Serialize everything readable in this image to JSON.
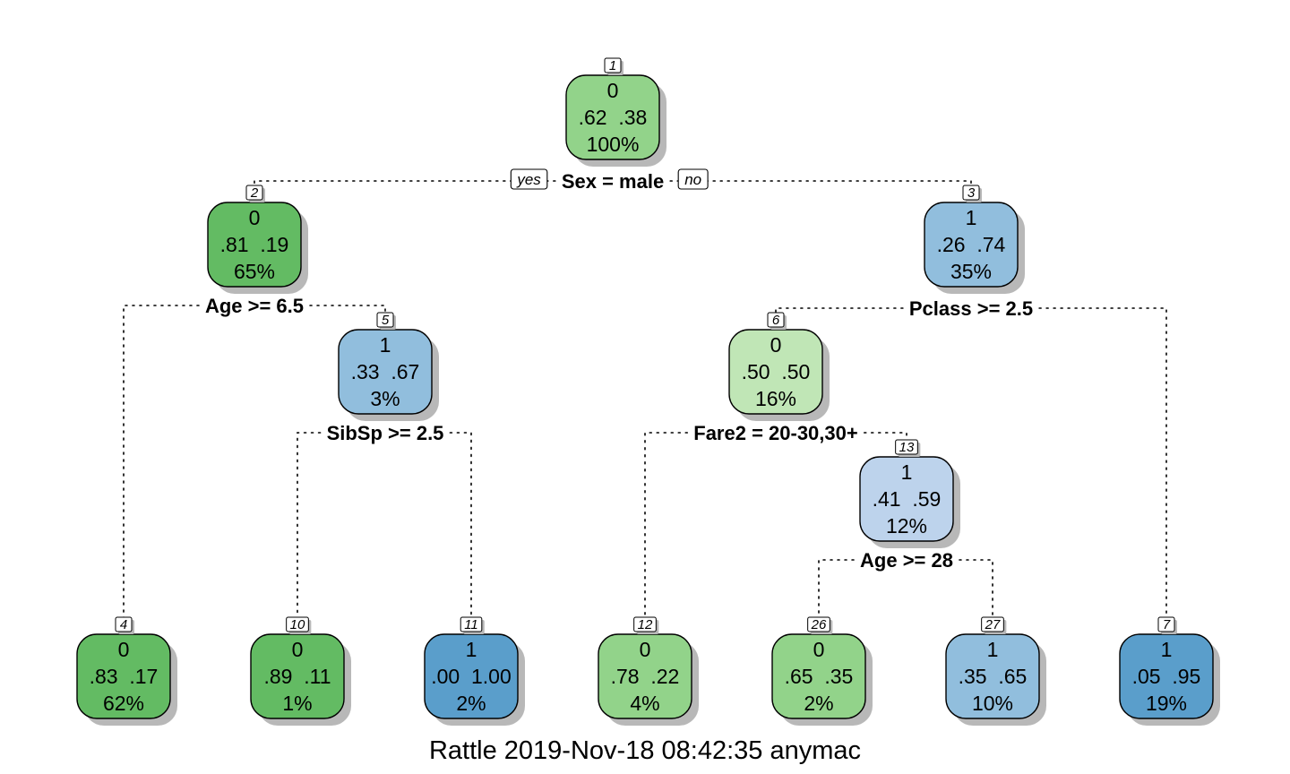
{
  "caption": "Rattle 2019-Nov-18 08:42:35 anymac",
  "branch_labels": {
    "yes": "yes",
    "no": "no"
  },
  "colors": {
    "green_dark": "#63bb63",
    "green_mid": "#92d38a",
    "green_light": "#c0e6b6",
    "blue_light": "#bdd3ec",
    "blue_mid": "#91bedd",
    "blue_dark": "#5a9ecb",
    "shadow": "#b8b8b8"
  },
  "nodes": [
    {
      "id": "1",
      "class": "0",
      "probs": ".62  .38",
      "pct": "100%",
      "fill": "green_mid"
    },
    {
      "id": "2",
      "class": "0",
      "probs": ".81  .19",
      "pct": "65%",
      "fill": "green_dark"
    },
    {
      "id": "3",
      "class": "1",
      "probs": ".26  .74",
      "pct": "35%",
      "fill": "blue_mid"
    },
    {
      "id": "4",
      "class": "0",
      "probs": ".83  .17",
      "pct": "62%",
      "fill": "green_dark"
    },
    {
      "id": "5",
      "class": "1",
      "probs": ".33  .67",
      "pct": "3%",
      "fill": "blue_mid"
    },
    {
      "id": "6",
      "class": "0",
      "probs": ".50  .50",
      "pct": "16%",
      "fill": "green_light"
    },
    {
      "id": "7",
      "class": "1",
      "probs": ".05  .95",
      "pct": "19%",
      "fill": "blue_dark"
    },
    {
      "id": "10",
      "class": "0",
      "probs": ".89  .11",
      "pct": "1%",
      "fill": "green_dark"
    },
    {
      "id": "11",
      "class": "1",
      "probs": ".00  1.00",
      "pct": "2%",
      "fill": "blue_dark"
    },
    {
      "id": "12",
      "class": "0",
      "probs": ".78  .22",
      "pct": "4%",
      "fill": "green_mid"
    },
    {
      "id": "13",
      "class": "1",
      "probs": ".41  .59",
      "pct": "12%",
      "fill": "blue_light"
    },
    {
      "id": "26",
      "class": "0",
      "probs": ".65  .35",
      "pct": "2%",
      "fill": "green_mid"
    },
    {
      "id": "27",
      "class": "1",
      "probs": ".35  .65",
      "pct": "10%",
      "fill": "blue_mid"
    }
  ],
  "splits": [
    {
      "node": "1",
      "label": "Sex = male",
      "left": "2",
      "right": "3"
    },
    {
      "node": "2",
      "label": "Age >= 6.5",
      "left": "4",
      "right": "5"
    },
    {
      "node": "3",
      "label": "Pclass >= 2.5",
      "left": "6",
      "right": "7"
    },
    {
      "node": "5",
      "label": "SibSp >= 2.5",
      "left": "10",
      "right": "11"
    },
    {
      "node": "6",
      "label": "Fare2 = 20-30,30+",
      "left": "12",
      "right": "13"
    },
    {
      "node": "13",
      "label": "Age >= 28",
      "left": "26",
      "right": "27"
    }
  ]
}
